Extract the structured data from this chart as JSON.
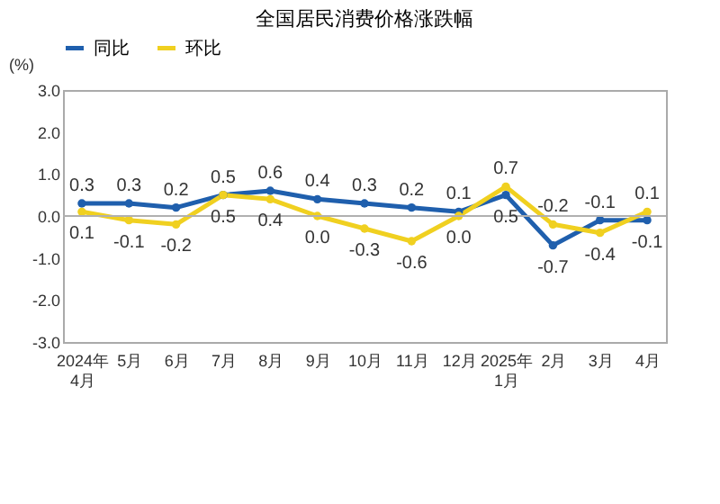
{
  "chart_data": {
    "type": "line",
    "title": "全国居民消费价格涨跌幅",
    "ylabel": "(%)",
    "categories": [
      "2024年\n4月",
      "5月",
      "6月",
      "7月",
      "8月",
      "9月",
      "10月",
      "11月",
      "12月",
      "2025年\n1月",
      "2月",
      "3月",
      "4月"
    ],
    "series": [
      {
        "name": "同比",
        "color": "#1f5fad",
        "values": [
          0.3,
          0.3,
          0.2,
          0.5,
          0.6,
          0.4,
          0.3,
          0.2,
          0.1,
          0.5,
          -0.7,
          -0.1,
          -0.1
        ],
        "value_labels": [
          "0.3",
          "0.3",
          "0.2",
          "0.5",
          "0.6",
          "0.4",
          "0.3",
          "0.2",
          "0.1",
          "0.5",
          "-0.7",
          "-0.1",
          "-0.1"
        ]
      },
      {
        "name": "环比",
        "color": "#f0d020",
        "values": [
          0.1,
          -0.1,
          -0.2,
          0.5,
          0.4,
          0.0,
          -0.3,
          -0.6,
          0.0,
          0.7,
          -0.2,
          -0.4,
          0.1
        ],
        "value_labels": [
          "0.1",
          "-0.1",
          "-0.2",
          "0.5",
          "0.4",
          "0.0",
          "-0.3",
          "-0.6",
          "0.0",
          "0.7",
          "-0.2",
          "-0.4",
          "0.1"
        ]
      }
    ],
    "ylim": [
      -3.0,
      3.0
    ],
    "yticks": [
      {
        "value": -3,
        "label": "-3.0"
      },
      {
        "value": -2,
        "label": "-2.0"
      },
      {
        "value": -1,
        "label": "-1.0"
      },
      {
        "value": 0,
        "label": "0.0"
      },
      {
        "value": 1,
        "label": "1.0"
      },
      {
        "value": 2,
        "label": "2.0"
      },
      {
        "value": 3,
        "label": "3.0"
      }
    ],
    "ref_lines": [
      {
        "axis": "y",
        "value": 0,
        "color": "#b0b0b0"
      }
    ],
    "data_labels": true,
    "grid": false,
    "legend": "top",
    "marker": "circle",
    "line_style": "solid"
  }
}
